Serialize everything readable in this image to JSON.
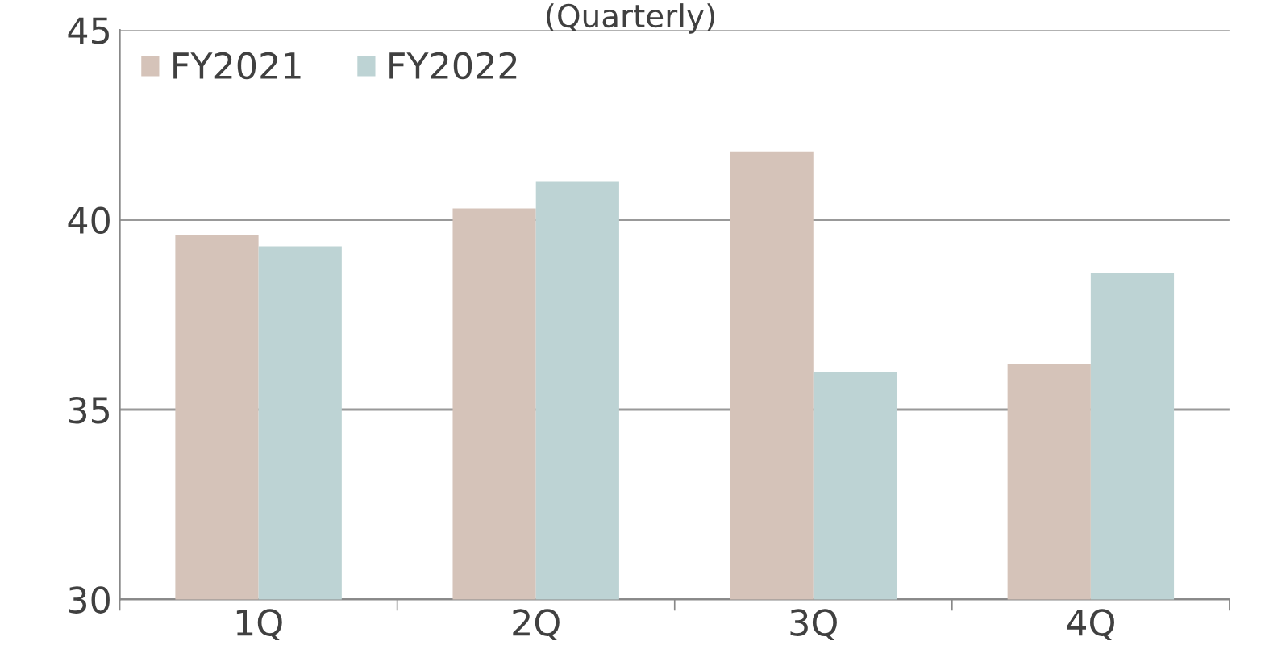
{
  "chart_data": {
    "type": "bar",
    "title": "(Quarterly)",
    "categories": [
      "1Q",
      "2Q",
      "3Q",
      "4Q"
    ],
    "series": [
      {
        "name": "FY2021",
        "color": "#d5c3b9",
        "values": [
          39.6,
          40.3,
          41.8,
          36.2
        ]
      },
      {
        "name": "FY2022",
        "color": "#bdd3d4",
        "values": [
          39.3,
          41.0,
          36.0,
          38.6
        ]
      }
    ],
    "ylim": [
      30,
      45
    ],
    "yticks": [
      30,
      35,
      40,
      45
    ],
    "grid": "y",
    "legend": "top left"
  }
}
